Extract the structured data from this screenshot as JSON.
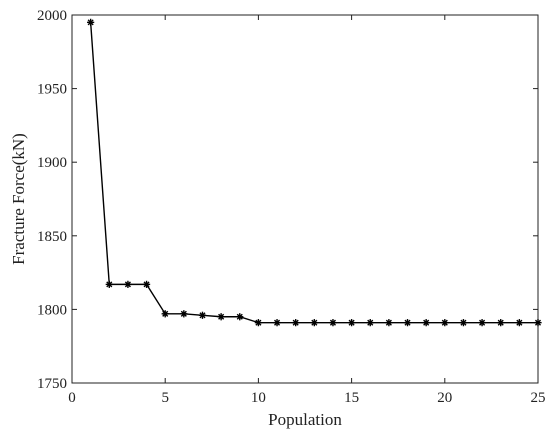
{
  "chart_data": {
    "type": "line",
    "title": "",
    "xlabel": "Population",
    "ylabel": "Fracture Force(kN)",
    "xlim": [
      0,
      25
    ],
    "ylim": [
      1750,
      2000
    ],
    "xticks": [
      0,
      5,
      10,
      15,
      20,
      25
    ],
    "yticks": [
      1750,
      1800,
      1850,
      1900,
      1950,
      2000
    ],
    "grid": false,
    "legend": "none",
    "marker": "asterisk",
    "line_color": "#000000",
    "series": [
      {
        "x": [
          1,
          2,
          3,
          4,
          5,
          6,
          7,
          8,
          9,
          10,
          11,
          12,
          13,
          14,
          15,
          16,
          17,
          18,
          19,
          20,
          21,
          22,
          23,
          24,
          25
        ],
        "y": [
          1995,
          1817,
          1817,
          1817,
          1797,
          1797,
          1796,
          1795,
          1795,
          1791,
          1791,
          1791,
          1791,
          1791,
          1791,
          1791,
          1791,
          1791,
          1791,
          1791,
          1791,
          1791,
          1791,
          1791,
          1791
        ]
      }
    ]
  }
}
